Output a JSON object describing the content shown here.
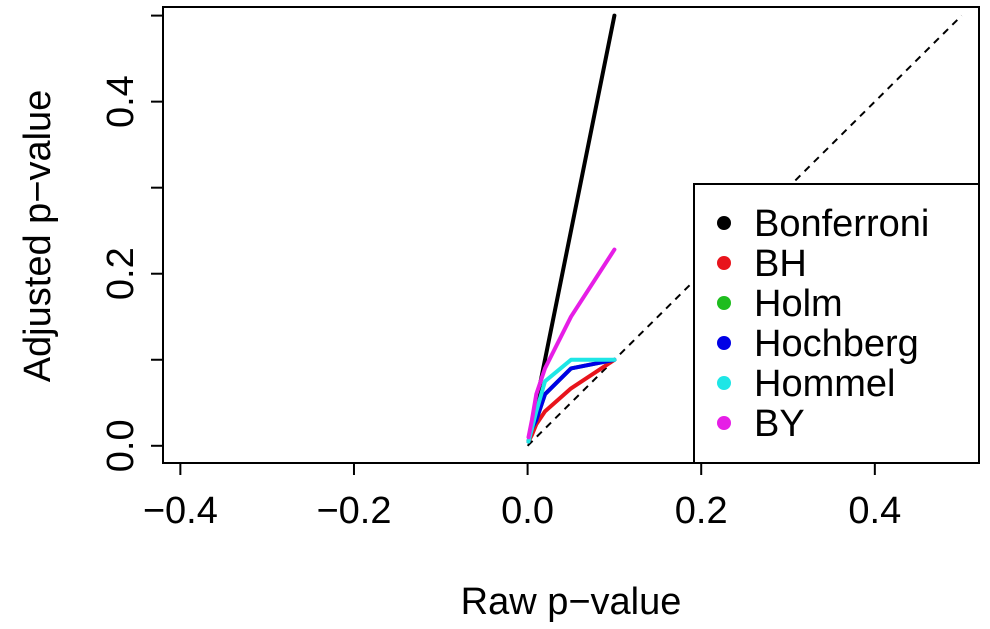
{
  "chart_data": {
    "type": "line",
    "title": "",
    "xlabel": "Raw p−value",
    "ylabel": "Adjusted p−value",
    "xlim": [
      -0.42,
      0.52
    ],
    "ylim": [
      -0.02,
      0.51
    ],
    "xticks": [
      {
        "value": -0.4,
        "label": "−0.4"
      },
      {
        "value": -0.2,
        "label": "−0.2"
      },
      {
        "value": 0.0,
        "label": "0.0"
      },
      {
        "value": 0.2,
        "label": "0.2"
      },
      {
        "value": 0.4,
        "label": "0.4"
      }
    ],
    "yticks": [
      {
        "value": 0.0,
        "label": "0.0"
      },
      {
        "value": 0.1,
        "label": ""
      },
      {
        "value": 0.2,
        "label": "0.2"
      },
      {
        "value": 0.3,
        "label": ""
      },
      {
        "value": 0.4,
        "label": "0.4"
      },
      {
        "value": 0.5,
        "label": ""
      }
    ],
    "grid": false,
    "legend_position": "right",
    "reference_line": {
      "type": "identity",
      "style": "dashed",
      "color": "#000000",
      "x": [
        0,
        0.5
      ],
      "y": [
        0,
        0.5
      ]
    },
    "series": [
      {
        "name": "Bonferroni",
        "color": "#000000",
        "x": [
          0.001,
          0.01,
          0.1
        ],
        "y": [
          0.005,
          0.05,
          0.5
        ]
      },
      {
        "name": "BH",
        "color": "#e8141c",
        "x": [
          0.001,
          0.005,
          0.01,
          0.02,
          0.05,
          0.1
        ],
        "y": [
          0.005,
          0.0125,
          0.025,
          0.04,
          0.0667,
          0.1
        ]
      },
      {
        "name": "Holm",
        "color": "#1ebd1e",
        "x": [
          0.001,
          0.005,
          0.01,
          0.02,
          0.05,
          0.1
        ],
        "y": [
          0.005,
          0.02,
          0.03,
          0.06,
          0.09,
          0.1
        ]
      },
      {
        "name": "Hochberg",
        "color": "#0000e6",
        "x": [
          0.001,
          0.005,
          0.01,
          0.02,
          0.05,
          0.1
        ],
        "y": [
          0.005,
          0.02,
          0.03,
          0.06,
          0.09,
          0.1
        ]
      },
      {
        "name": "Hommel",
        "color": "#1ee6e6",
        "x": [
          0.001,
          0.005,
          0.01,
          0.02,
          0.05,
          0.1
        ],
        "y": [
          0.005,
          0.02,
          0.04,
          0.075,
          0.1,
          0.1
        ]
      },
      {
        "name": "BY",
        "color": "#e61ee6",
        "x": [
          0.001,
          0.005,
          0.01,
          0.02,
          0.05,
          0.1
        ],
        "y": [
          0.01,
          0.03,
          0.06,
          0.09,
          0.15,
          0.228
        ]
      }
    ]
  }
}
